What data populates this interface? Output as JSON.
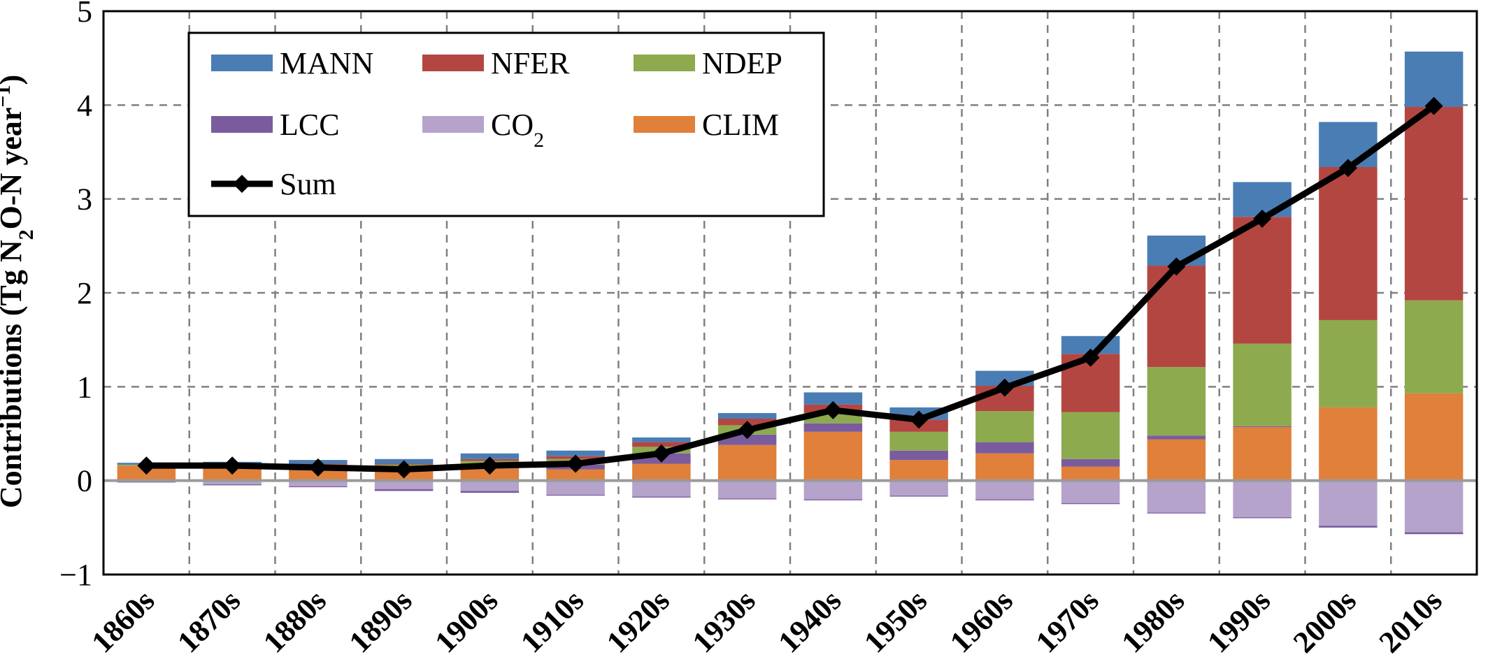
{
  "chart_data": {
    "type": "bar",
    "stacked": true,
    "categories": [
      "1860s",
      "1870s",
      "1880s",
      "1890s",
      "1900s",
      "1910s",
      "1920s",
      "1930s",
      "1940s",
      "1950s",
      "1960s",
      "1970s",
      "1980s",
      "1990s",
      "2000s",
      "2010s"
    ],
    "ylabel_prefix": "Contributions (Tg N",
    "ylabel_sub": "2",
    "ylabel_mid": "O-N year",
    "ylabel_sup": "−1",
    "ylabel_suffix": ")",
    "ylim": [
      -1,
      5
    ],
    "yticks": [
      -1,
      0,
      1,
      2,
      3,
      4,
      5
    ],
    "ytick_labels": [
      "−1",
      "0",
      "1",
      "2",
      "3",
      "4",
      "5"
    ],
    "grid": true,
    "legend_position": "top-left",
    "series": [
      {
        "name": "CLIM",
        "color": "#E0803A",
        "values": [
          0.16,
          0.14,
          0.12,
          0.1,
          0.13,
          0.12,
          0.18,
          0.38,
          0.52,
          0.22,
          0.29,
          0.15,
          0.44,
          0.57,
          0.78,
          0.93
        ]
      },
      {
        "name": "LCC",
        "color": "#7A5C9E",
        "values": [
          0.0,
          0.01,
          0.02,
          0.03,
          0.03,
          0.05,
          0.11,
          0.11,
          0.09,
          0.1,
          0.12,
          0.08,
          0.04,
          0.01,
          0.0,
          0.0
        ]
      },
      {
        "name": "NDEP",
        "color": "#8DAA4F",
        "values": [
          0.01,
          0.02,
          0.03,
          0.04,
          0.05,
          0.06,
          0.07,
          0.1,
          0.11,
          0.2,
          0.33,
          0.5,
          0.73,
          0.88,
          0.93,
          0.99
        ]
      },
      {
        "name": "NFER",
        "color": "#B44641",
        "values": [
          0.0,
          0.0,
          0.01,
          0.01,
          0.02,
          0.03,
          0.05,
          0.07,
          0.09,
          0.13,
          0.27,
          0.62,
          1.08,
          1.35,
          1.63,
          2.06
        ]
      },
      {
        "name": "MANN",
        "color": "#4A7DB4",
        "values": [
          0.02,
          0.03,
          0.04,
          0.05,
          0.06,
          0.06,
          0.05,
          0.06,
          0.13,
          0.13,
          0.16,
          0.19,
          0.32,
          0.37,
          0.48,
          0.59
        ]
      },
      {
        "name": "CO2",
        "name_main": "CO",
        "name_sub": "2",
        "color": "#B5A3CC",
        "values": [
          -0.01,
          -0.04,
          -0.06,
          -0.09,
          -0.11,
          -0.15,
          -0.17,
          -0.19,
          -0.2,
          -0.16,
          -0.2,
          -0.24,
          -0.34,
          -0.39,
          -0.48,
          -0.55
        ]
      },
      {
        "name": "LCC_negative",
        "color": "#7A5C9E",
        "values": [
          -0.01,
          -0.01,
          -0.01,
          -0.02,
          -0.02,
          -0.01,
          -0.01,
          -0.01,
          -0.01,
          -0.01,
          -0.01,
          -0.01,
          -0.01,
          -0.01,
          -0.02,
          -0.02
        ]
      }
    ],
    "sum": {
      "name": "Sum",
      "values": [
        0.16,
        0.16,
        0.14,
        0.12,
        0.16,
        0.18,
        0.29,
        0.54,
        0.75,
        0.65,
        0.99,
        1.31,
        2.28,
        2.79,
        3.33,
        3.99
      ]
    },
    "legend": [
      {
        "label": "MANN",
        "color": "#4A7DB4",
        "kind": "swatch"
      },
      {
        "label": "NFER",
        "color": "#B44641",
        "kind": "swatch"
      },
      {
        "label": "NDEP",
        "color": "#8DAA4F",
        "kind": "swatch"
      },
      {
        "label": "LCC",
        "color": "#7A5C9E",
        "kind": "swatch"
      },
      {
        "label": "CO",
        "sub": "2",
        "color": "#B5A3CC",
        "kind": "swatch"
      },
      {
        "label": "CLIM",
        "color": "#E0803A",
        "kind": "swatch"
      },
      {
        "label": "Sum",
        "color": "#000000",
        "kind": "line-marker"
      }
    ]
  }
}
